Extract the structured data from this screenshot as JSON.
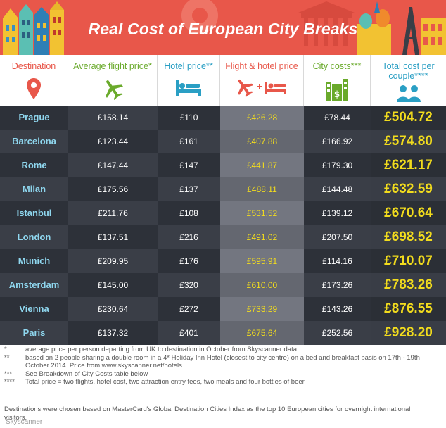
{
  "title": "Real Cost of European City Breaks",
  "columns": [
    {
      "label": "Destination",
      "color": "#e8574a",
      "icon": "map-pin-icon"
    },
    {
      "label": "Average flight price*",
      "color": "#6aaa2b",
      "icon": "airplane-icon"
    },
    {
      "label": "Hotel price**",
      "color": "#2a9fc4",
      "icon": "bed-icon"
    },
    {
      "label": "Flight & hotel price",
      "color": "#e8574a",
      "icon": "plane-plus-bed-icon"
    },
    {
      "label": "City costs***",
      "color": "#6aaa2b",
      "icon": "city-money-icon"
    },
    {
      "label": "Total cost per couple****",
      "color": "#2a9fc4",
      "icon": "couple-icon"
    }
  ],
  "chart_data": {
    "type": "table",
    "title": "Real Cost of European City Breaks",
    "headers": [
      "Destination",
      "Average flight price*",
      "Hotel price**",
      "Flight & hotel price",
      "City costs***",
      "Total cost per couple****"
    ],
    "rows": [
      {
        "city": "Prague",
        "flight": "£158.14",
        "hotel": "£110",
        "flight_hotel": "£426.28",
        "city_costs": "£78.44",
        "total": "£504.72"
      },
      {
        "city": "Barcelona",
        "flight": "£123.44",
        "hotel": "£161",
        "flight_hotel": "£407.88",
        "city_costs": "£166.92",
        "total": "£574.80"
      },
      {
        "city": "Rome",
        "flight": "£147.44",
        "hotel": "£147",
        "flight_hotel": "£441.87",
        "city_costs": "£179.30",
        "total": "£621.17"
      },
      {
        "city": "Milan",
        "flight": "£175.56",
        "hotel": "£137",
        "flight_hotel": "£488.11",
        "city_costs": "£144.48",
        "total": "£632.59"
      },
      {
        "city": "Istanbul",
        "flight": "£211.76",
        "hotel": "£108",
        "flight_hotel": "£531.52",
        "city_costs": "£139.12",
        "total": "£670.64"
      },
      {
        "city": "London",
        "flight": "£137.51",
        "hotel": "£216",
        "flight_hotel": "£491.02",
        "city_costs": "£207.50",
        "total": "£698.52"
      },
      {
        "city": "Munich",
        "flight": "£209.95",
        "hotel": "£176",
        "flight_hotel": "£595.91",
        "city_costs": "£114.16",
        "total": "£710.07"
      },
      {
        "city": "Amsterdam",
        "flight": "£145.00",
        "hotel": "£320",
        "flight_hotel": "£610.00",
        "city_costs": "£173.26",
        "total": "£783.26"
      },
      {
        "city": "Vienna",
        "flight": "£230.64",
        "hotel": "£272",
        "flight_hotel": "£733.29",
        "city_costs": "£143.26",
        "total": "£876.55"
      },
      {
        "city": "Paris",
        "flight": "£137.32",
        "hotel": "£401",
        "flight_hotel": "£675.64",
        "city_costs": "£252.56",
        "total": "£928.20"
      }
    ]
  },
  "footnotes": [
    {
      "marker": "*",
      "text": "average price per person departing from UK to destination in October from Skyscanner data."
    },
    {
      "marker": "**",
      "text": "based on 2 people sharing a double room in a 4* Holiday Inn Hotel (closest to city centre) on a bed and breakfast basis on 17th - 19th October 2014. Price from www.skyscanner.net/hotels"
    },
    {
      "marker": "***",
      "text": "See Breakdown of City Costs table below"
    },
    {
      "marker": "****",
      "text": "Total price = two flights, hotel cost, two attraction entry fees, two meals and four bottles of beer"
    }
  ],
  "bottom_note": "Destinations were chosen based on MasterCard's Global Destination Cities Index as the top 10 European cities for overnight international visitors.",
  "credit": "Skyscanner",
  "colors": {
    "banner": "#e8574a",
    "city_cell": "#2d3139",
    "flight_cell": "#3a3e47",
    "combo_cell": "#737680",
    "total_cell": "#2b2f36",
    "city_text": "#8fd7ef",
    "highlight_text": "#f2dc1d"
  }
}
